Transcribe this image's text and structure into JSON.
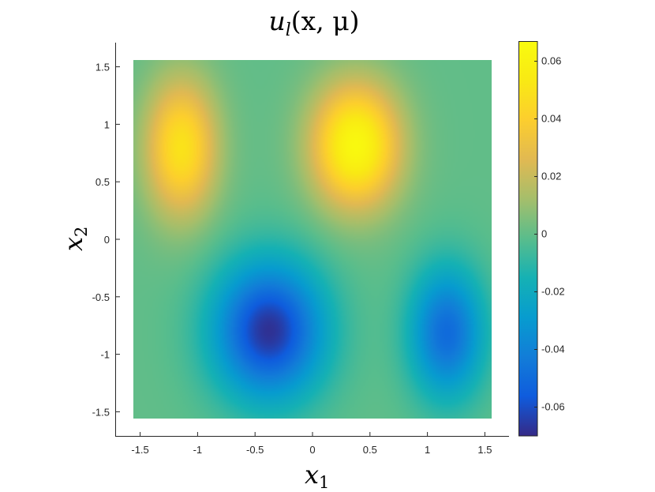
{
  "chart_data": {
    "type": "heatmap",
    "title_parts": {
      "base": "u",
      "sub": "l",
      "args": "(x, μ)"
    },
    "xlabel_parts": {
      "base": "x",
      "sub": "1"
    },
    "ylabel_parts": {
      "base": "x",
      "sub": "2"
    },
    "xlim": [
      -1.71,
      1.71
    ],
    "ylim": [
      -1.71,
      1.71
    ],
    "data_extent": [
      -1.5708,
      1.5708
    ],
    "x_ticks": [
      -1.5,
      -1,
      -0.5,
      0,
      0.5,
      1,
      1.5
    ],
    "x_tick_labels": [
      "-1.5",
      "-1",
      "-0.5",
      "0",
      "0.5",
      "1",
      "1.5"
    ],
    "y_ticks": [
      1.5,
      1,
      0.5,
      0,
      -0.5,
      -1,
      -1.5
    ],
    "y_tick_labels": [
      "1.5",
      "1",
      "0.5",
      "0",
      "-0.5",
      "-1",
      "-1.5"
    ],
    "clim": [
      -0.07,
      0.067
    ],
    "colormap": "parula",
    "colorbar_ticks": [
      0.06,
      0.04,
      0.02,
      0,
      -0.02,
      -0.04,
      -0.06
    ],
    "colorbar_tick_labels": [
      "0.06",
      "0.04",
      "0.02",
      "0",
      "-0.02",
      "-0.04",
      "-0.06"
    ],
    "grid": false,
    "features": [
      {
        "x": -1.15,
        "y": 0.8,
        "amplitude": 0.05,
        "sx": 0.22,
        "sy": 0.42
      },
      {
        "x": 0.38,
        "y": 0.82,
        "amplitude": 0.065,
        "sx": 0.27,
        "sy": 0.38
      },
      {
        "x": -0.38,
        "y": -0.8,
        "amplitude": -0.068,
        "sx": 0.34,
        "sy": 0.42
      },
      {
        "x": 1.18,
        "y": -0.82,
        "amplitude": -0.05,
        "sx": 0.23,
        "sy": 0.4
      }
    ]
  }
}
